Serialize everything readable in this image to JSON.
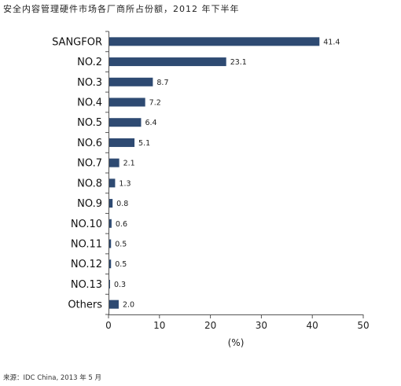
{
  "chart_data": {
    "type": "bar",
    "orientation": "horizontal",
    "title": "安全内容管理硬件市场各厂商所占份额，2012 年下半年",
    "source": "来源：IDC China, 2013 年 5 月",
    "xlabel": "(%)",
    "ylabel": "",
    "xlim": [
      0,
      50
    ],
    "xticks": [
      "0",
      "10",
      "20",
      "30",
      "40",
      "50"
    ],
    "categories": [
      "SANGFOR",
      "NO.2",
      "NO.3",
      "NO.4",
      "NO.5",
      "NO.6",
      "NO.7",
      "NO.8",
      "NO.9",
      "NO.10",
      "NO.11",
      "NO.12",
      "NO.13",
      "Others"
    ],
    "values": [
      41.4,
      23.1,
      8.7,
      7.2,
      6.4,
      5.1,
      2.1,
      1.3,
      0.8,
      0.6,
      0.5,
      0.5,
      0.3,
      2.0
    ],
    "value_labels": [
      "41.4",
      "23.1",
      "8.7",
      "7.2",
      "6.4",
      "5.1",
      "2.1",
      "1.3",
      "0.8",
      "0.6",
      "0.5",
      "0.5",
      "0.3",
      "2.0"
    ],
    "bar_color": "#2e4a72",
    "grid": false,
    "legend": "none"
  }
}
